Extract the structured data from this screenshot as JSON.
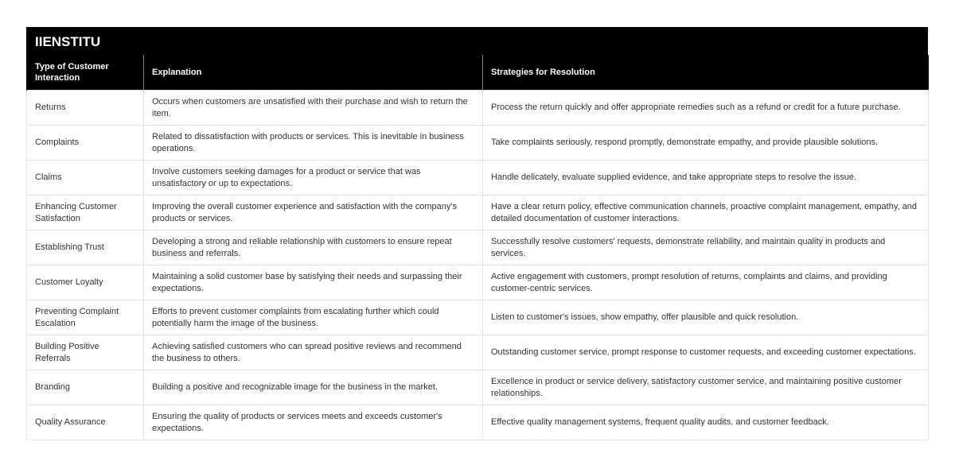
{
  "brand": "IIENSTITU",
  "headers": [
    "Type of Customer Interaction",
    "Explanation",
    "Strategies for Resolution"
  ],
  "rows": [
    [
      "Returns",
      "Occurs when customers are unsatisfied with their purchase and wish to return the item.",
      "Process the return quickly and offer appropriate remedies such as a refund or credit for a future purchase."
    ],
    [
      "Complaints",
      "Related to dissatisfaction with products or services. This is inevitable in business operations.",
      "Take complaints seriously, respond promptly, demonstrate empathy, and provide plausible solutions."
    ],
    [
      "Claims",
      "Involve customers seeking damages for a product or service that was unsatisfactory or up to expectations.",
      "Handle delicately, evaluate supplied evidence, and take appropriate steps to resolve the issue."
    ],
    [
      "Enhancing Customer Satisfaction",
      "Improving the overall customer experience and satisfaction with the company's products or services.",
      "Have a clear return policy, effective communication channels, proactive complaint management, empathy, and detailed documentation of customer interactions."
    ],
    [
      "Establishing Trust",
      "Developing a strong and reliable relationship with customers to ensure repeat business and referrals.",
      "Successfully resolve customers' requests, demonstrate reliability, and maintain quality in products and services."
    ],
    [
      "Customer Loyalty",
      "Maintaining a solid customer base by satisfying their needs and surpassing their expectations.",
      "Active engagement with customers, prompt resolution of returns, complaints and claims, and providing customer-centric services."
    ],
    [
      "Preventing Complaint Escalation",
      "Efforts to prevent customer complaints from escalating further which could potentially harm the image of the business.",
      "Listen to customer's issues, show empathy, offer plausible and quick resolution."
    ],
    [
      "Building Positive Referrals",
      "Achieving satisfied customers who can spread positive reviews and recommend the business to others.",
      "Outstanding customer service, prompt response to customer requests, and exceeding customer expectations."
    ],
    [
      "Branding",
      "Building a positive and recognizable image for the business in the market.",
      "Excellence in product or service delivery, satisfactory customer service, and maintaining positive customer relationships."
    ],
    [
      "Quality Assurance",
      "Ensuring the quality of products or services meets and exceeds customer's expectations.",
      "Effective quality management systems, frequent quality audits, and customer feedback."
    ]
  ]
}
